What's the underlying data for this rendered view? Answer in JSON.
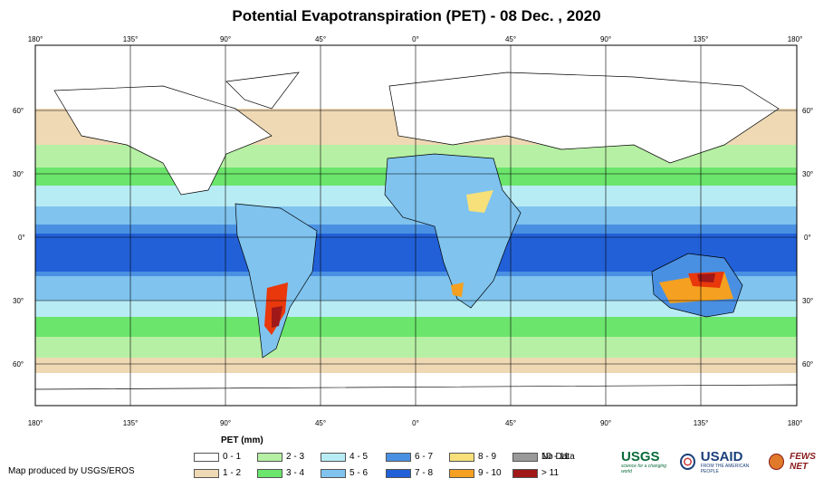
{
  "title": "Potential Evapotranspiration (PET) - 08 Dec. , 2020",
  "axes": {
    "top_lon_labels": [
      "180°",
      "135°",
      "90°",
      "45°",
      "0°",
      "45°",
      "90°",
      "135°",
      "180°"
    ],
    "bottom_lon_labels": [
      "180°",
      "135°",
      "90°",
      "45°",
      "0°",
      "45°",
      "90°",
      "135°",
      "180°"
    ],
    "left_lat_labels": [
      "60°",
      "30°",
      "0°",
      "30°",
      "60°"
    ],
    "right_lat_labels": [
      "60°",
      "30°",
      "0°",
      "30°",
      "60°"
    ]
  },
  "legend": {
    "title": "PET (mm)",
    "items": [
      {
        "label": "0 - 1",
        "color": "#ffffff"
      },
      {
        "label": "1 - 2",
        "color": "#efd9b4"
      },
      {
        "label": "2 - 3",
        "color": "#b6f0a4"
      },
      {
        "label": "3 - 4",
        "color": "#6be56b"
      },
      {
        "label": "4 - 5",
        "color": "#b8ecf5"
      },
      {
        "label": "5 - 6",
        "color": "#7fc3ee"
      },
      {
        "label": "6 - 7",
        "color": "#4a90e2"
      },
      {
        "label": "7 - 8",
        "color": "#2260d8"
      },
      {
        "label": "8 - 9",
        "color": "#f7e07a"
      },
      {
        "label": "9 - 10",
        "color": "#f5a020"
      },
      {
        "label": "10 - 11",
        "color": "#e8380c"
      },
      {
        "label": "> 11",
        "color": "#a01818"
      },
      {
        "label": "No Data",
        "color": "#9a9a9a"
      }
    ]
  },
  "credit": "Map produced by USGS/EROS",
  "logos": {
    "usgs": "USGS",
    "usgs_tagline": "science for a changing world",
    "usaid": "USAID",
    "usaid_tagline": "FROM THE AMERICAN PEOPLE",
    "fews": "FEWS NET"
  },
  "colors": {
    "ocean_band_deep": "#2260d8",
    "ocean_band_mid": "#4a90e2",
    "frame": "#000000"
  }
}
